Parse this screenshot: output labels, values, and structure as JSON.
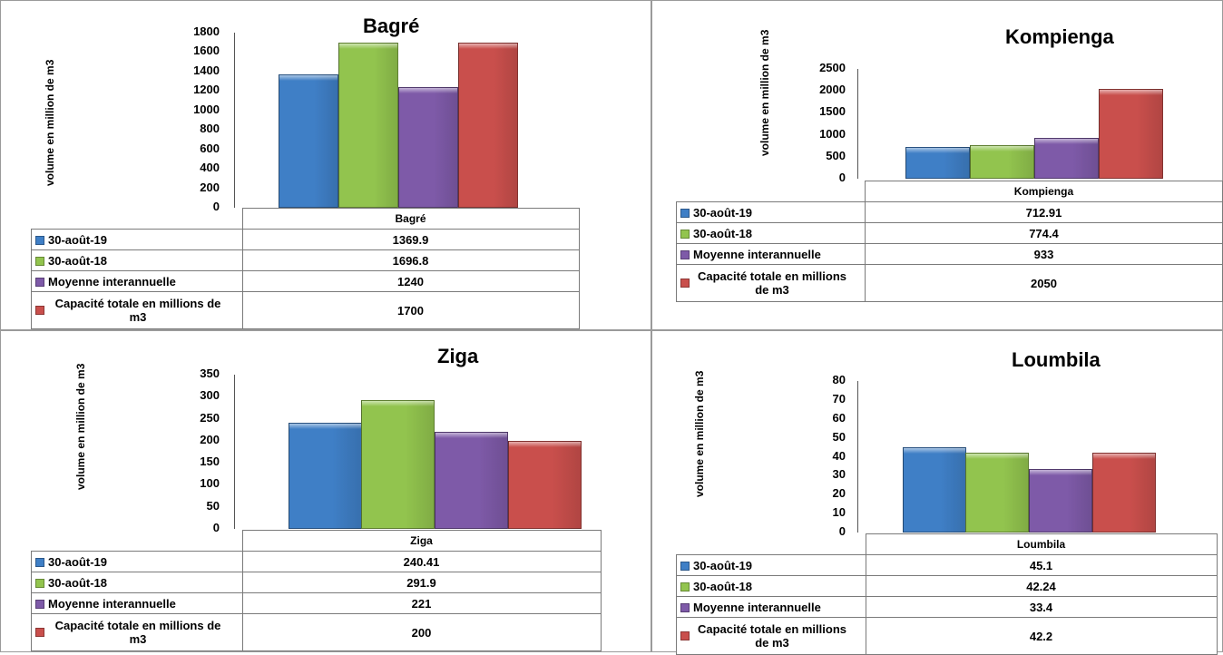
{
  "colors": {
    "30-août-19": "#3f7fc6",
    "30-août-18": "#92c44e",
    "Moyenne interannuelle": "#7e5aa8",
    "Capacité totale": "#c94f4c"
  },
  "chart_data": [
    {
      "type": "bar",
      "title": "Bagré",
      "ylabel": "volume en million de m3",
      "categories": [
        "Bagré"
      ],
      "ylim": [
        0,
        1800
      ],
      "yticks": [
        0,
        200,
        400,
        600,
        800,
        1000,
        1200,
        1400,
        1600,
        1800
      ],
      "series": [
        {
          "name": "30-août-19",
          "values": [
            1369.9
          ],
          "display": "1369.9"
        },
        {
          "name": "30-août-18",
          "values": [
            1696.8
          ],
          "display": "1696.8"
        },
        {
          "name": "Moyenne interannuelle",
          "values": [
            1240
          ],
          "display": "1240"
        },
        {
          "name": "Capacité totale en millions de m3",
          "values": [
            1700
          ],
          "display": "1700"
        }
      ]
    },
    {
      "type": "bar",
      "title": "Kompienga",
      "ylabel": "volume en million de m3",
      "categories": [
        "Kompienga"
      ],
      "ylim": [
        0,
        2500
      ],
      "yticks": [
        0,
        500,
        1000,
        1500,
        2000,
        2500
      ],
      "series": [
        {
          "name": "30-août-19",
          "values": [
            712.91
          ],
          "display": "712.91"
        },
        {
          "name": "30-août-18",
          "values": [
            774.4
          ],
          "display": "774.4"
        },
        {
          "name": "Moyenne interannuelle",
          "values": [
            933
          ],
          "display": "933"
        },
        {
          "name": "Capacité totale en millions de m3",
          "values": [
            2050
          ],
          "display": "2050"
        }
      ]
    },
    {
      "type": "bar",
      "title": "Ziga",
      "ylabel": "volume en million de m3",
      "categories": [
        "Ziga"
      ],
      "ylim": [
        0,
        350
      ],
      "yticks": [
        0,
        50,
        100,
        150,
        200,
        250,
        300,
        350
      ],
      "series": [
        {
          "name": "30-août-19",
          "values": [
            240.41
          ],
          "display": "240.41"
        },
        {
          "name": "30-août-18",
          "values": [
            291.9
          ],
          "display": "291.9"
        },
        {
          "name": "Moyenne interannuelle",
          "values": [
            221
          ],
          "display": "221"
        },
        {
          "name": "Capacité totale en millions de m3",
          "values": [
            200
          ],
          "display": "200"
        }
      ]
    },
    {
      "type": "bar",
      "title": "Loumbila",
      "ylabel": "volume en million de m3",
      "categories": [
        "Loumbila"
      ],
      "ylim": [
        0,
        80
      ],
      "yticks": [
        0,
        10,
        20,
        30,
        40,
        50,
        60,
        70,
        80
      ],
      "series": [
        {
          "name": "30-août-19",
          "values": [
            45.1
          ],
          "display": "45.1"
        },
        {
          "name": "30-août-18",
          "values": [
            42.24
          ],
          "display": "42.24"
        },
        {
          "name": "Moyenne interannuelle",
          "values": [
            33.4
          ],
          "display": "33.4"
        },
        {
          "name": "Capacité totale en millions de m3",
          "values": [
            42.2
          ],
          "display": "42.2"
        }
      ]
    }
  ]
}
